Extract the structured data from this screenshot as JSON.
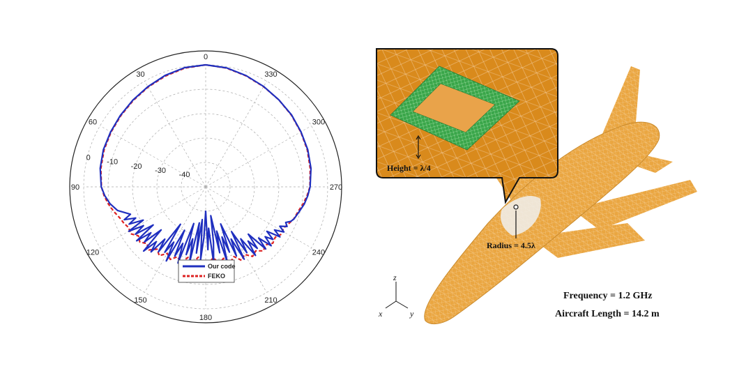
{
  "chart_data": {
    "type": "polar-line",
    "angle_unit": "degrees",
    "angle_direction": "counterclockwise",
    "angle_zero": "top",
    "angle_ticks": [
      "0",
      "30",
      "60",
      "90",
      "120",
      "150",
      "180",
      "210",
      "240",
      "270",
      "300",
      "330"
    ],
    "radial_ticks": [
      "0",
      "-10",
      "-20",
      "-30",
      "-40"
    ],
    "radial_range": [
      -50,
      0
    ],
    "grid": true,
    "legend": {
      "placement": "bottom-right",
      "entries": [
        "Our code",
        "FEKO"
      ]
    },
    "series": [
      {
        "name": "Our code",
        "color": "#1f2fbf",
        "style": "solid",
        "theta": [
          0,
          10,
          20,
          30,
          40,
          50,
          60,
          70,
          80,
          90,
          95,
          100,
          105,
          110,
          112,
          114,
          116,
          118,
          120,
          122,
          124,
          126,
          128,
          130,
          132,
          134,
          136,
          138,
          140,
          142,
          144,
          146,
          148,
          150,
          152,
          154,
          156,
          158,
          160,
          162,
          164,
          166,
          168,
          170,
          172,
          174,
          176,
          178,
          180,
          182,
          184,
          186,
          188,
          190,
          192,
          194,
          196,
          198,
          200,
          202,
          204,
          206,
          208,
          210,
          212,
          214,
          216,
          218,
          220,
          222,
          224,
          226,
          228,
          230,
          232,
          234,
          236,
          238,
          240,
          242,
          244,
          246,
          248,
          250,
          255,
          260,
          265,
          270,
          280,
          290,
          300,
          310,
          320,
          330,
          340,
          350,
          360
        ],
        "r": [
          0,
          -0.4,
          -1.4,
          -2.6,
          -3.6,
          -4.4,
          -5.0,
          -5.4,
          -6.1,
          -7.2,
          -8.5,
          -10.2,
          -12.6,
          -17.2,
          -14.0,
          -18.6,
          -15.1,
          -21.0,
          -13.6,
          -19.9,
          -15.3,
          -23.4,
          -14.1,
          -20.7,
          -16.2,
          -24.6,
          -13.4,
          -19.7,
          -15.2,
          -22.8,
          -17.1,
          -31.5,
          -18.4,
          -23.8,
          -15.6,
          -30.2,
          -18.9,
          -25.0,
          -16.8,
          -34.2,
          -21.1,
          -28.0,
          -18.3,
          -35.0,
          -22.6,
          -36.5,
          -20.1,
          -29.3,
          -40.0,
          -24.2,
          -33.0,
          -18.8,
          -27.1,
          -38.0,
          -22.4,
          -31.3,
          -17.6,
          -28.4,
          -21.5,
          -33.6,
          -19.0,
          -26.2,
          -16.4,
          -28.8,
          -18.2,
          -24.3,
          -15.3,
          -21.8,
          -17.1,
          -23.9,
          -14.6,
          -19.8,
          -13.9,
          -18.2,
          -15.0,
          -19.0,
          -13.3,
          -16.7,
          -13.0,
          -15.6,
          -12.9,
          -14.1,
          -12.3,
          -11.5,
          -10.4,
          -9.0,
          -8.0,
          -7.2,
          -6.2,
          -5.5,
          -4.9,
          -4.1,
          -3.4,
          -2.5,
          -1.5,
          -0.5,
          0
        ]
      },
      {
        "name": "FEKO",
        "color": "#dd2222",
        "style": "dashed",
        "theta": [
          0,
          10,
          20,
          30,
          40,
          50,
          60,
          70,
          80,
          90,
          95,
          100,
          105,
          110,
          114,
          118,
          122,
          126,
          130,
          134,
          138,
          142,
          146,
          150,
          154,
          158,
          162,
          166,
          170,
          174,
          178,
          180,
          182,
          186,
          190,
          194,
          198,
          202,
          206,
          210,
          214,
          218,
          222,
          226,
          230,
          234,
          238,
          242,
          246,
          250,
          255,
          260,
          265,
          270,
          280,
          290,
          300,
          310,
          320,
          330,
          340,
          350,
          360
        ],
        "r": [
          0,
          -0.6,
          -1.7,
          -2.8,
          -3.8,
          -4.6,
          -5.2,
          -5.7,
          -6.4,
          -7.3,
          -8.2,
          -9.5,
          -11.0,
          -12.6,
          -13.3,
          -14.3,
          -13.7,
          -15.9,
          -14.8,
          -16.5,
          -15.2,
          -17.6,
          -16.0,
          -18.5,
          -16.9,
          -19.1,
          -17.4,
          -20.2,
          -18.0,
          -21.0,
          -18.6,
          -19.6,
          -18.3,
          -20.8,
          -18.1,
          -19.8,
          -17.4,
          -19.2,
          -16.5,
          -18.0,
          -15.6,
          -16.7,
          -14.7,
          -15.8,
          -14.1,
          -14.8,
          -13.4,
          -13.9,
          -12.8,
          -11.6,
          -10.8,
          -9.5,
          -8.3,
          -7.3,
          -6.5,
          -5.7,
          -5.0,
          -4.2,
          -3.4,
          -2.6,
          -1.6,
          -0.6,
          0
        ]
      }
    ]
  },
  "illustration": {
    "height_label": "Height = λ/4",
    "radius_label": "Radius = 4.5λ",
    "axis_z": "z",
    "axis_x": "x",
    "axis_y": "y",
    "frequency_label": "Frequency = 1.2 GHz",
    "length_label": "Aircraft Length = 14.2 m",
    "aircraft_color": "#e8a33c",
    "callout_bg": "#d98a1c",
    "patch_color": "#3aa64a"
  }
}
